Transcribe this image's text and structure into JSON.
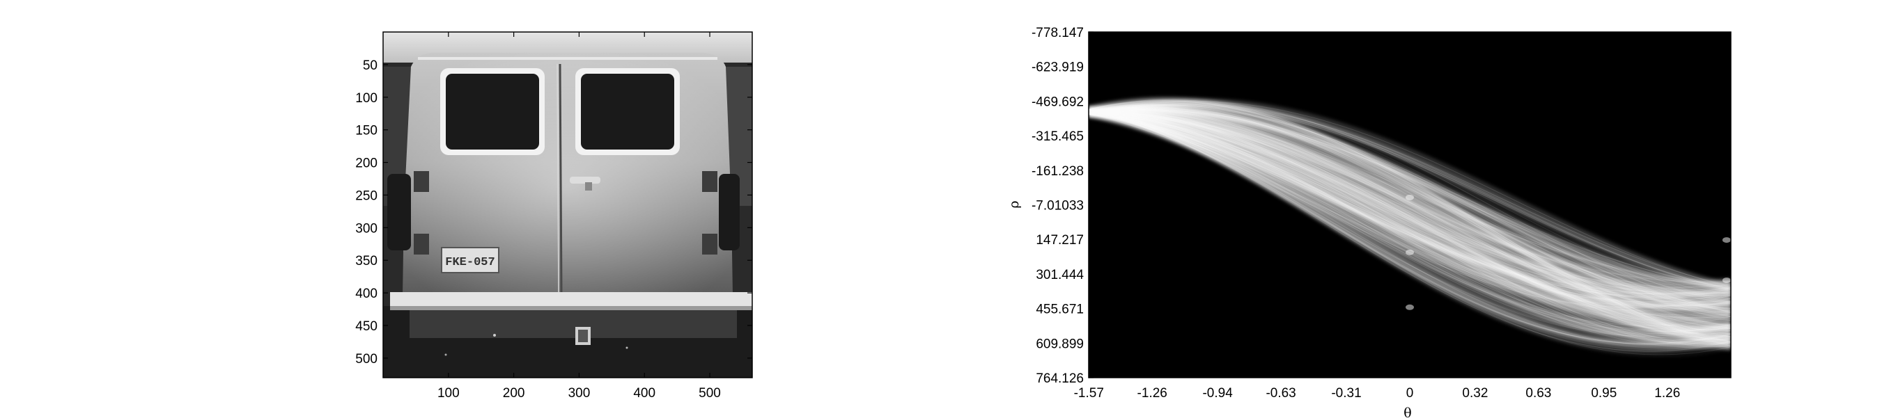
{
  "image_panel": {
    "y_ticks": [
      "50",
      "100",
      "150",
      "200",
      "250",
      "300",
      "350",
      "400",
      "450",
      "500"
    ],
    "x_ticks": [
      "100",
      "200",
      "300",
      "400",
      "500"
    ],
    "plate_text": "FKE-057"
  },
  "hough_panel": {
    "y_ticks": [
      "-778.147",
      "-623.919",
      "-469.692",
      "-315.465",
      "-161.238",
      "-7.01033",
      "147.217",
      "301.444",
      "455.671",
      "609.899",
      "764.126"
    ],
    "x_ticks": [
      "-1.57",
      "-1.26",
      "-0.94",
      "-0.63",
      "-0.31",
      "0",
      "0.32",
      "0.63",
      "0.95",
      "1.26"
    ],
    "xlabel": "θ",
    "ylabel": "ρ"
  },
  "colors": {
    "background": "#ffffff",
    "axis": "#000000",
    "hough_background": "#000000"
  }
}
